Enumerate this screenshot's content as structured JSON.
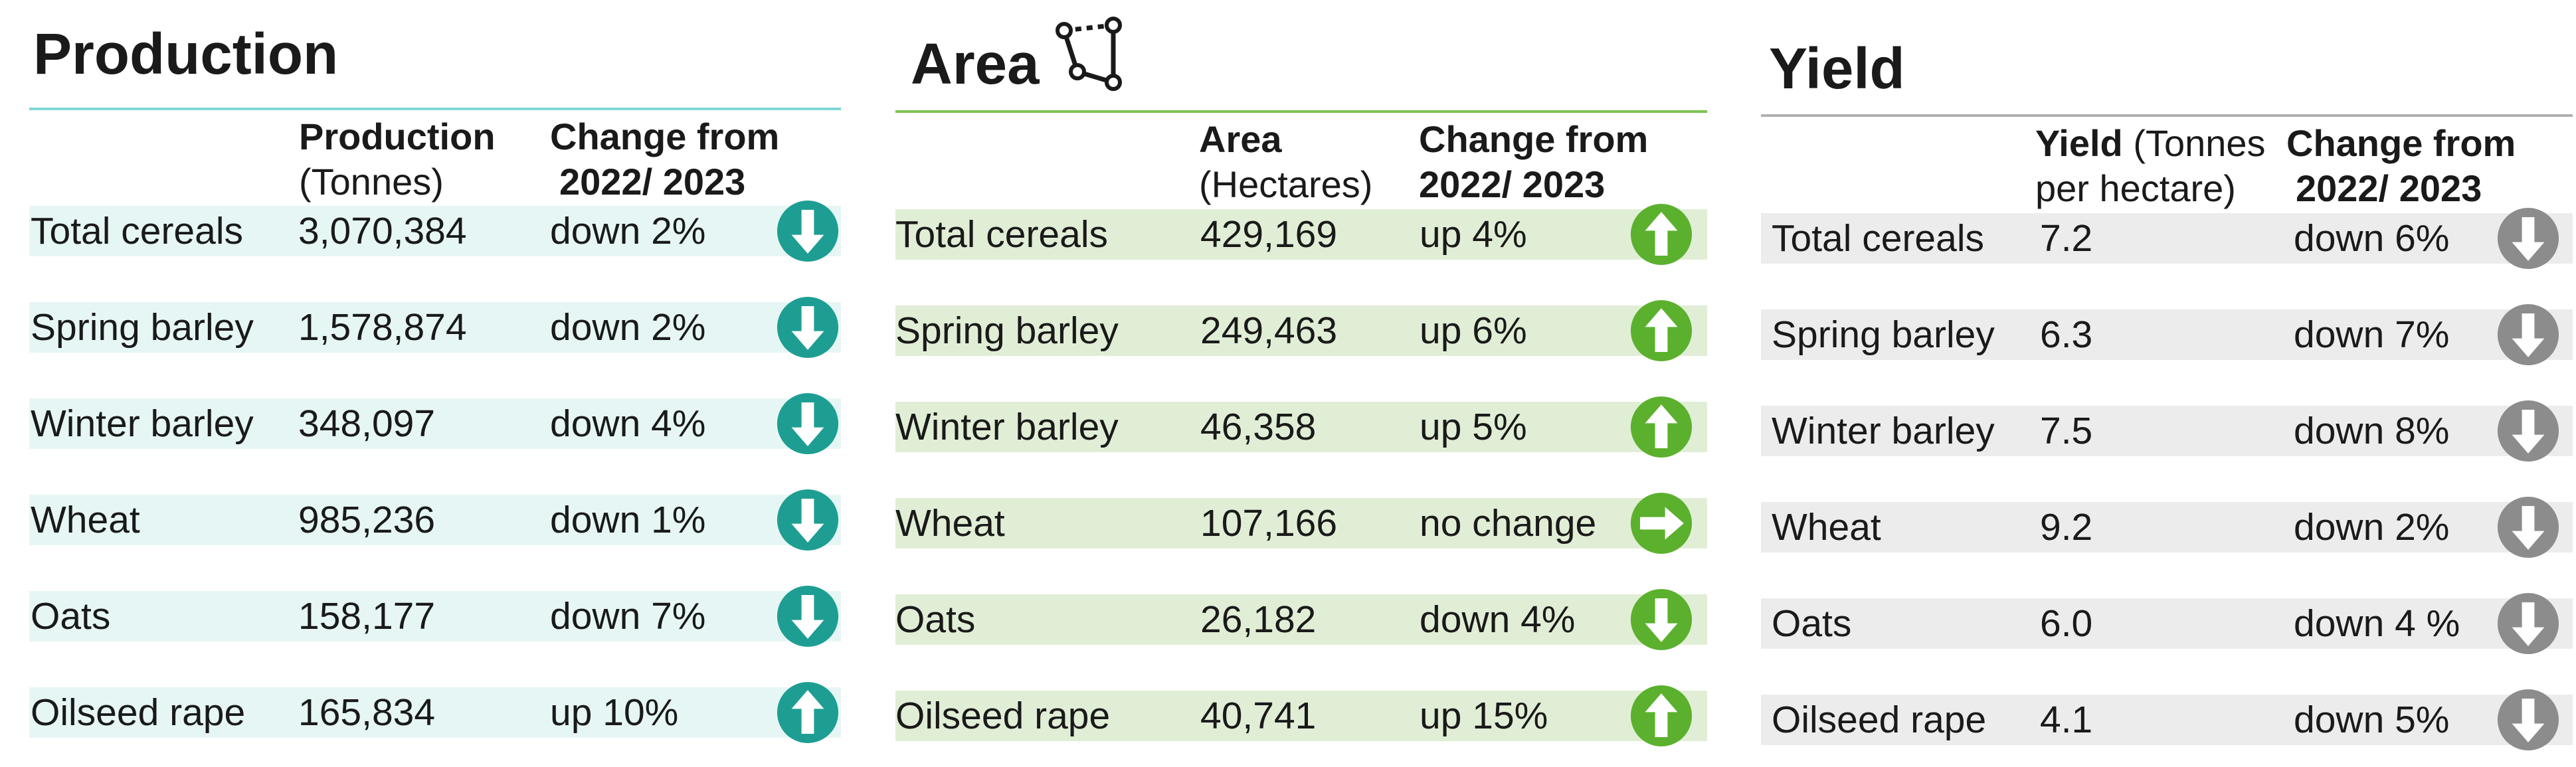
{
  "colors": {
    "production_rule": "#7fd8d4",
    "production_row_bg": "#e6f6f5",
    "production_arrow": "#1e9e93",
    "area_rule": "#7ec451",
    "area_row_bg": "#e1eed6",
    "area_arrow": "#5bb12d",
    "yield_rule": "#b0b0b0",
    "yield_row_bg": "#ececec",
    "yield_arrow": "#8c8c8c"
  },
  "production": {
    "title": "Production",
    "header": {
      "col1_bold": "Production",
      "col1_sub": "(Tonnes)",
      "col2_line1": "Change from",
      "col2_line2": "2022/ 2023"
    },
    "rows": [
      {
        "crop": "Total cereals",
        "value": "3,070,384",
        "change": "down 2%",
        "icon": "arrow-down-icon"
      },
      {
        "crop": "Spring barley",
        "value": "1,578,874",
        "change": "down 2%",
        "icon": "arrow-down-icon"
      },
      {
        "crop": "Winter barley",
        "value": "348,097",
        "change": "down 4%",
        "icon": "arrow-down-icon"
      },
      {
        "crop": "Wheat",
        "value": "985,236",
        "change": "down 1%",
        "icon": "arrow-down-icon"
      },
      {
        "crop": "Oats",
        "value": "158,177",
        "change": "down 7%",
        "icon": "arrow-down-icon"
      },
      {
        "crop": "Oilseed rape",
        "value": "165,834",
        "change": "up 10%",
        "icon": "arrow-up-icon"
      }
    ]
  },
  "area": {
    "title": "Area",
    "title_icon": "area-polygon-icon",
    "header": {
      "col1_bold": "Area",
      "col1_sub": "(Hectares)",
      "col2_line1": "Change from",
      "col2_line2": "2022/ 2023"
    },
    "rows": [
      {
        "crop": "Total cereals",
        "value": "429,169",
        "change": "up 4%",
        "icon": "arrow-up-icon"
      },
      {
        "crop": "Spring barley",
        "value": "249,463",
        "change": "up 6%",
        "icon": "arrow-up-icon"
      },
      {
        "crop": "Winter barley",
        "value": "46,358",
        "change": "up 5%",
        "icon": "arrow-up-icon"
      },
      {
        "crop": "Wheat",
        "value": "107,166",
        "change": "no change",
        "icon": "arrow-right-icon"
      },
      {
        "crop": "Oats",
        "value": "26,182",
        "change": "down 4%",
        "icon": "arrow-down-icon"
      },
      {
        "crop": "Oilseed rape",
        "value": "40,741",
        "change": "up 15%",
        "icon": "arrow-up-icon"
      }
    ]
  },
  "yield": {
    "title": "Yield",
    "header": {
      "col1_bold": "Yield",
      "col1_rest": "(Tonnes",
      "col1_sub": "per hectare)",
      "col2_line1": "Change from",
      "col2_line2": "2022/ 2023"
    },
    "rows": [
      {
        "crop": "Total cereals",
        "value": "7.2",
        "change": "down 6%",
        "icon": "arrow-down-icon"
      },
      {
        "crop": "Spring barley",
        "value": "6.3",
        "change": "down 7%",
        "icon": "arrow-down-icon"
      },
      {
        "crop": "Winter barley",
        "value": "7.5",
        "change": "down 8%",
        "icon": "arrow-down-icon"
      },
      {
        "crop": "Wheat",
        "value": "9.2",
        "change": "down 2%",
        "icon": "arrow-down-icon"
      },
      {
        "crop": "Oats",
        "value": "6.0",
        "change": "down 4 %",
        "icon": "arrow-down-icon"
      },
      {
        "crop": "Oilseed rape",
        "value": "4.1",
        "change": "down 5%",
        "icon": "arrow-down-icon"
      }
    ]
  }
}
